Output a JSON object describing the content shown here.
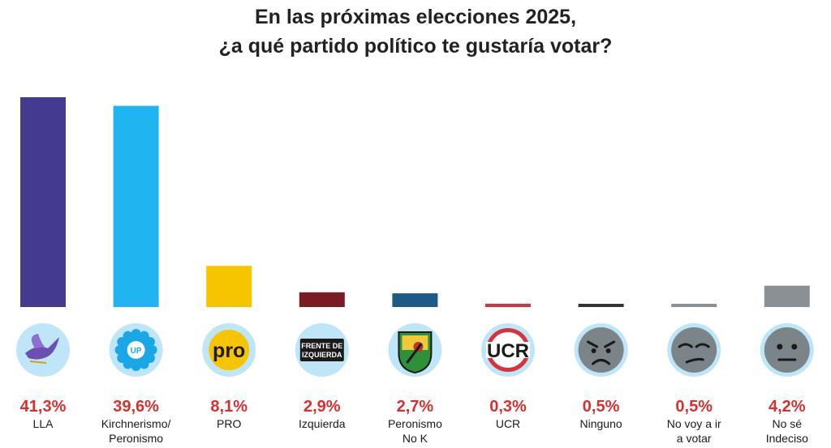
{
  "title_line1": "En las próximas elecciones 2025,",
  "title_line2": "¿a qué partido político te gustaría votar?",
  "chart_data": {
    "type": "bar",
    "unit": "%",
    "categories": [
      {
        "label": [
          "LLA"
        ],
        "value": 41.3,
        "value_label": "41,3%",
        "color": "#443a8f",
        "icon": "lla-dove-logo",
        "icon_text": ""
      },
      {
        "label": [
          "Kirchnerismo/",
          "Peronismo"
        ],
        "value": 39.6,
        "value_label": "39,6%",
        "color": "#20b4f0",
        "icon": "up-gear-logo",
        "icon_text": "UP"
      },
      {
        "label": [
          "PRO"
        ],
        "value": 8.1,
        "value_label": "8,1%",
        "color": "#f6c500",
        "icon": "pro-logo",
        "icon_text": "pro"
      },
      {
        "label": [
          "Izquierda"
        ],
        "value": 2.9,
        "value_label": "2,9%",
        "color": "#7a1a22",
        "icon": "frente-izquierda-logo",
        "icon_text": "FRENTE DE IZQUIERDA"
      },
      {
        "label": [
          "Peronismo",
          "No K"
        ],
        "value": 2.7,
        "value_label": "2,7%",
        "color": "#1d5a86",
        "icon": "peronismo-shield-logo",
        "icon_text": ""
      },
      {
        "label": [
          "UCR"
        ],
        "value": 0.3,
        "value_label": "0,3%",
        "color": "#d8333c",
        "icon": "ucr-logo",
        "icon_text": "UCR"
      },
      {
        "label": [
          "Ninguno"
        ],
        "value": 0.5,
        "value_label": "0,5%",
        "color": "#333333",
        "icon": "angry-face-icon",
        "icon_text": ""
      },
      {
        "label": [
          "No voy a ir",
          "a votar"
        ],
        "value": 0.5,
        "value_label": "0,5%",
        "color": "#8a9196",
        "icon": "unamused-face-icon",
        "icon_text": ""
      },
      {
        "label": [
          "No sé",
          "Indeciso"
        ],
        "value": 4.2,
        "value_label": "4,2%",
        "color": "#8a9196",
        "icon": "neutral-face-icon",
        "icon_text": ""
      }
    ],
    "value_label_color": "#d6302f"
  }
}
